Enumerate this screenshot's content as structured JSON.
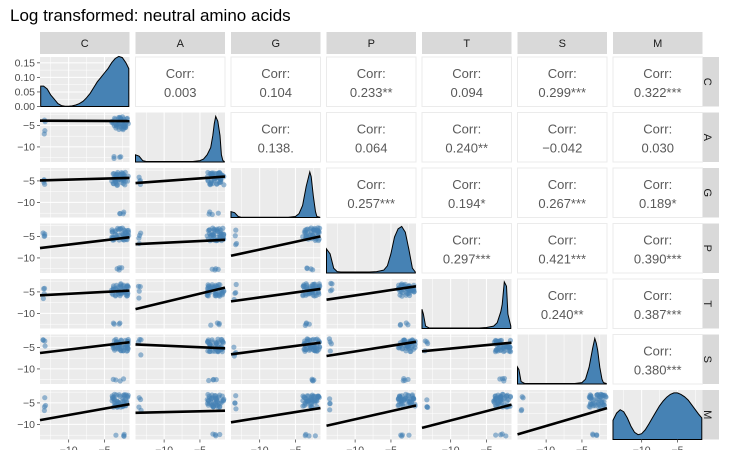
{
  "chart_data": {
    "type": "scatter",
    "title": "Log transformed: neutral amino acids",
    "variables": [
      "C",
      "A",
      "G",
      "P",
      "T",
      "S",
      "M"
    ],
    "colors": {
      "fill": "#4682b4",
      "line": "#000000"
    },
    "xlim": [
      -14,
      -1.5
    ],
    "ylim": [
      -13.5,
      -2
    ],
    "density_axis_ticks": [
      "0.00",
      "0.05",
      "0.10",
      "0.15"
    ],
    "density_axis_range": [
      0,
      0.17
    ],
    "x_ticks": [
      -10,
      -5
    ],
    "x_tick_labels": [
      "−10",
      "−5"
    ],
    "y_ticks": [
      -10,
      -5
    ],
    "y_tick_labels": [
      "−10",
      "−5"
    ],
    "correlation_label": "Corr:",
    "correlations": [
      {
        "row": "C",
        "col": "A",
        "value": "0.003"
      },
      {
        "row": "C",
        "col": "G",
        "value": "0.104"
      },
      {
        "row": "C",
        "col": "P",
        "value": "0.233**"
      },
      {
        "row": "C",
        "col": "T",
        "value": "0.094"
      },
      {
        "row": "C",
        "col": "S",
        "value": "0.299***"
      },
      {
        "row": "C",
        "col": "M",
        "value": "0.322***"
      },
      {
        "row": "A",
        "col": "G",
        "value": "0.138."
      },
      {
        "row": "A",
        "col": "P",
        "value": "0.064"
      },
      {
        "row": "A",
        "col": "T",
        "value": "0.240**"
      },
      {
        "row": "A",
        "col": "S",
        "value": "−0.042"
      },
      {
        "row": "A",
        "col": "M",
        "value": "0.030"
      },
      {
        "row": "G",
        "col": "P",
        "value": "0.257***"
      },
      {
        "row": "G",
        "col": "T",
        "value": "0.194*"
      },
      {
        "row": "G",
        "col": "S",
        "value": "0.267***"
      },
      {
        "row": "G",
        "col": "M",
        "value": "0.189*"
      },
      {
        "row": "P",
        "col": "T",
        "value": "0.297***"
      },
      {
        "row": "P",
        "col": "S",
        "value": "0.421***"
      },
      {
        "row": "P",
        "col": "M",
        "value": "0.390***"
      },
      {
        "row": "T",
        "col": "S",
        "value": "0.240**"
      },
      {
        "row": "T",
        "col": "M",
        "value": "0.387***"
      },
      {
        "row": "S",
        "col": "M",
        "value": "0.380***"
      }
    ],
    "densities": {
      "C": {
        "x": [
          -13.9,
          -13.5,
          -13,
          -12.5,
          -12,
          -11.5,
          -11,
          -10.5,
          -10,
          -9.5,
          -9,
          -8.5,
          -8,
          -7.5,
          -7,
          -6.5,
          -6,
          -5.5,
          -5,
          -4.5,
          -4,
          -3.5,
          -3,
          -2.5,
          -2,
          -1.6
        ],
        "y": [
          0.07,
          0.07,
          0.06,
          0.04,
          0.025,
          0.01,
          0.003,
          0.001,
          0.001,
          0.002,
          0.005,
          0.01,
          0.018,
          0.03,
          0.045,
          0.065,
          0.085,
          0.1,
          0.115,
          0.13,
          0.15,
          0.165,
          0.172,
          0.168,
          0.15,
          0.13
        ]
      },
      "A": {
        "x": [
          -14,
          -13.5,
          -13,
          -12.5,
          -12,
          -11,
          -10,
          -9,
          -8,
          -7,
          -6,
          -5,
          -4.5,
          -4,
          -3.5,
          -3.2,
          -3,
          -2.8,
          -2.5,
          -2.2,
          -2,
          -1.8,
          -1.6
        ],
        "y": [
          0.15,
          0.12,
          0.03,
          0.01,
          0.01,
          0.01,
          0.01,
          0.01,
          0.01,
          0.01,
          0.01,
          0.03,
          0.06,
          0.15,
          0.3,
          0.55,
          0.8,
          0.95,
          0.85,
          0.55,
          0.15,
          0.03,
          0.01
        ]
      },
      "G": {
        "x": [
          -14,
          -13.5,
          -13,
          -12.5,
          -12,
          -11,
          -10,
          -9,
          -8,
          -7,
          -6,
          -5,
          -4.5,
          -4,
          -3.5,
          -3,
          -2.8,
          -2.5,
          -2.2,
          -2,
          -1.6
        ],
        "y": [
          0.12,
          0.1,
          0.02,
          0.005,
          0.005,
          0.005,
          0.005,
          0.005,
          0.005,
          0.005,
          0.005,
          0.02,
          0.08,
          0.25,
          0.65,
          0.95,
          0.85,
          0.45,
          0.12,
          0.02,
          0.005
        ]
      },
      "P": {
        "x": [
          -14,
          -13.5,
          -13,
          -12.5,
          -12,
          -11,
          -10,
          -9,
          -8,
          -7,
          -6,
          -5.5,
          -5,
          -4.5,
          -4,
          -3.5,
          -3,
          -2.5,
          -2,
          -1.6
        ],
        "y": [
          0.5,
          0.4,
          0.1,
          0.03,
          0.02,
          0.02,
          0.02,
          0.02,
          0.02,
          0.03,
          0.06,
          0.15,
          0.4,
          0.75,
          0.92,
          0.97,
          0.85,
          0.5,
          0.1,
          0.02
        ]
      },
      "T": {
        "x": [
          -14,
          -13.8,
          -13.5,
          -13,
          -12.5,
          -12,
          -11,
          -10,
          -9,
          -8,
          -7,
          -6,
          -5,
          -4,
          -3.5,
          -3,
          -2.8,
          -2.5,
          -2.2,
          -2,
          -1.6
        ],
        "y": [
          0.4,
          0.3,
          0.05,
          0.01,
          0.01,
          0.01,
          0.01,
          0.01,
          0.01,
          0.01,
          0.01,
          0.01,
          0.02,
          0.05,
          0.12,
          0.35,
          0.5,
          0.97,
          0.88,
          0.3,
          0.05
        ]
      },
      "S": {
        "x": [
          -14,
          -13.8,
          -13.5,
          -13,
          -12.5,
          -12,
          -11,
          -10,
          -9,
          -8,
          -7,
          -6,
          -5,
          -4.5,
          -4,
          -3.5,
          -3.2,
          -3,
          -2.8,
          -2.5,
          -2.2,
          -2,
          -1.6
        ],
        "y": [
          0.35,
          0.3,
          0.05,
          0.01,
          0.01,
          0.01,
          0.01,
          0.01,
          0.01,
          0.01,
          0.01,
          0.01,
          0.03,
          0.1,
          0.35,
          0.75,
          0.95,
          0.85,
          0.7,
          0.35,
          0.1,
          0.03,
          0.01
        ]
      },
      "M": {
        "x": [
          -14,
          -13.5,
          -13,
          -12.5,
          -12,
          -11.5,
          -11,
          -10.5,
          -10,
          -9.5,
          -9,
          -8.5,
          -8,
          -7.5,
          -7,
          -6.5,
          -6,
          -5.5,
          -5,
          -4.5,
          -4,
          -3.5,
          -3,
          -2.5,
          -2,
          -1.6
        ],
        "y": [
          0.4,
          0.55,
          0.62,
          0.58,
          0.45,
          0.28,
          0.15,
          0.1,
          0.12,
          0.2,
          0.32,
          0.45,
          0.58,
          0.7,
          0.8,
          0.88,
          0.94,
          0.97,
          0.97,
          0.94,
          0.89,
          0.82,
          0.72,
          0.62,
          0.52,
          0.45
        ]
      }
    },
    "fits": [
      {
        "row": "A",
        "col": "C",
        "y": [
          -3.9,
          -4.0
        ]
      },
      {
        "row": "G",
        "col": "C",
        "y": [
          -4.9,
          -4.3
        ]
      },
      {
        "row": "G",
        "col": "A",
        "y": [
          -5.5,
          -4.0
        ]
      },
      {
        "row": "P",
        "col": "C",
        "y": [
          -7.7,
          -5.2
        ]
      },
      {
        "row": "P",
        "col": "A",
        "y": [
          -6.8,
          -5.8
        ]
      },
      {
        "row": "P",
        "col": "G",
        "y": [
          -9.5,
          -5.0
        ]
      },
      {
        "row": "T",
        "col": "C",
        "y": [
          -5.8,
          -4.7
        ]
      },
      {
        "row": "T",
        "col": "A",
        "y": [
          -9.0,
          -4.0
        ]
      },
      {
        "row": "T",
        "col": "G",
        "y": [
          -7.2,
          -4.3
        ]
      },
      {
        "row": "T",
        "col": "P",
        "y": [
          -6.8,
          -3.7
        ]
      },
      {
        "row": "S",
        "col": "C",
        "y": [
          -6.3,
          -3.8
        ]
      },
      {
        "row": "S",
        "col": "A",
        "y": [
          -4.3,
          -5.2
        ]
      },
      {
        "row": "S",
        "col": "G",
        "y": [
          -6.6,
          -3.9
        ]
      },
      {
        "row": "S",
        "col": "P",
        "y": [
          -7.0,
          -3.7
        ]
      },
      {
        "row": "S",
        "col": "T",
        "y": [
          -5.9,
          -3.9
        ]
      },
      {
        "row": "M",
        "col": "C",
        "y": [
          -9.0,
          -5.3
        ]
      },
      {
        "row": "M",
        "col": "A",
        "y": [
          -7.3,
          -6.8
        ]
      },
      {
        "row": "M",
        "col": "G",
        "y": [
          -9.5,
          -6.2
        ]
      },
      {
        "row": "M",
        "col": "P",
        "y": [
          -10.3,
          -5.6
        ]
      },
      {
        "row": "M",
        "col": "T",
        "y": [
          -10.8,
          -5.4
        ]
      },
      {
        "row": "M",
        "col": "S",
        "y": [
          -12.3,
          -6.2
        ]
      }
    ]
  }
}
